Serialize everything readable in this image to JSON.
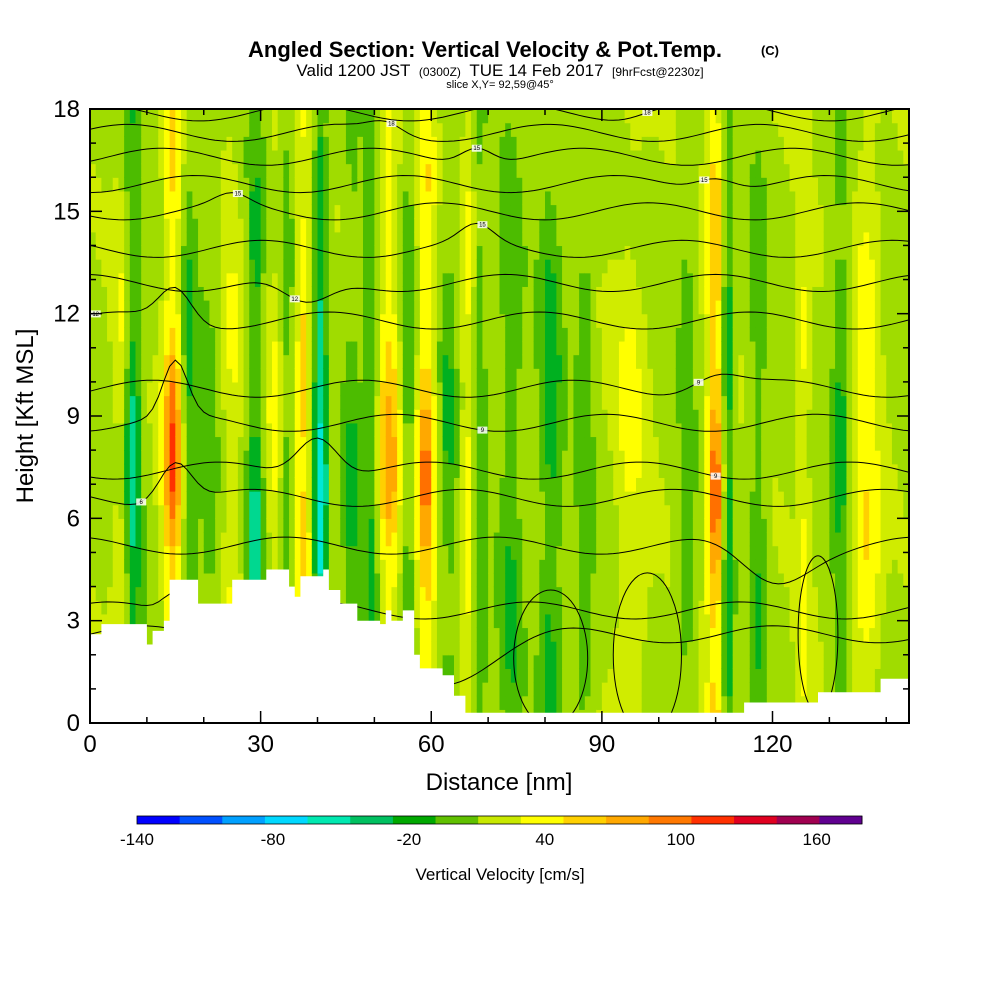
{
  "chart_data": {
    "type": "heatmap",
    "title": "Angled Section: Vertical Velocity & Pot.Temp.",
    "title_unit": "(C)",
    "subtitle_prefix": "Valid 1200 JST",
    "subtitle_utc": "(0300Z)",
    "subtitle_date": "TUE 14 Feb 2017",
    "subtitle_fcst": "[9hrFcst@2230z]",
    "slice_text": "slice X,Y= 92,59@45°",
    "xlabel": "Distance [nm]",
    "ylabel": "Height [Kft MSL]",
    "xlim": [
      0,
      144
    ],
    "ylim": [
      0,
      18
    ],
    "x_ticks": [
      "0",
      "30",
      "60",
      "90",
      "120"
    ],
    "x_tick_values": [
      0,
      30,
      60,
      90,
      120
    ],
    "y_ticks": [
      "0",
      "3",
      "6",
      "9",
      "12",
      "15",
      "18"
    ],
    "y_tick_values": [
      0,
      3,
      6,
      9,
      12,
      15,
      18
    ],
    "colorbar": {
      "label": "Vertical Velocity [cm/s]",
      "tick_labels": [
        "-140",
        "-80",
        "-20",
        "40",
        "100",
        "160"
      ],
      "tick_values": [
        -140,
        -80,
        -20,
        40,
        100,
        160
      ],
      "min": -140,
      "max": 180,
      "step": 20,
      "colors": [
        "#0000ff",
        "#0050ff",
        "#00a0ff",
        "#00d8ff",
        "#00e8b0",
        "#00c060",
        "#00a800",
        "#60c000",
        "#c8e800",
        "#ffff00",
        "#ffd000",
        "#ffa800",
        "#ff7800",
        "#ff3000",
        "#e00020",
        "#a00050",
        "#600090"
      ]
    },
    "color_stops": [
      {
        "value": -70,
        "color": "#00e8d8"
      },
      {
        "value": -50,
        "color": "#00d890"
      },
      {
        "value": -30,
        "color": "#00b020"
      },
      {
        "value": -15,
        "color": "#4cbc00"
      },
      {
        "value": 0,
        "color": "#a0dc00"
      },
      {
        "value": 15,
        "color": "#d0ec00"
      },
      {
        "value": 30,
        "color": "#ffff00"
      },
      {
        "value": 50,
        "color": "#ffd000"
      },
      {
        "value": 70,
        "color": "#ffa800"
      },
      {
        "value": 90,
        "color": "#ff7000"
      },
      {
        "value": 110,
        "color": "#ff3000"
      }
    ],
    "updraft_cores": [
      {
        "x": 5.5,
        "amp": 30,
        "width": 1.5
      },
      {
        "x": 14.5,
        "amp": 110,
        "width": 1.6
      },
      {
        "x": 25.0,
        "amp": 30,
        "width": 2.0
      },
      {
        "x": 32.5,
        "amp": 30,
        "width": 1.5
      },
      {
        "x": 37.5,
        "amp": 70,
        "width": 1.2
      },
      {
        "x": 52.5,
        "amp": 80,
        "width": 2.0
      },
      {
        "x": 59.0,
        "amp": 95,
        "width": 1.6
      },
      {
        "x": 66.5,
        "amp": 40,
        "width": 1.3
      },
      {
        "x": 95.0,
        "amp": 30,
        "width": 3.0
      },
      {
        "x": 110.0,
        "amp": 110,
        "width": 1.5
      },
      {
        "x": 125.5,
        "amp": 35,
        "width": 1.2
      },
      {
        "x": 136.5,
        "amp": 50,
        "width": 2.5
      }
    ],
    "downdraft_cores": [
      {
        "x": 7.5,
        "amp": -60,
        "width": 1.5
      },
      {
        "x": 17.5,
        "amp": -40,
        "width": 1.5
      },
      {
        "x": 21.0,
        "amp": -25,
        "width": 1.5
      },
      {
        "x": 29.0,
        "amp": -55,
        "width": 1.5
      },
      {
        "x": 34.5,
        "amp": -30,
        "width": 1.2
      },
      {
        "x": 40.5,
        "amp": -85,
        "width": 1.2
      },
      {
        "x": 46.0,
        "amp": -30,
        "width": 1.5
      },
      {
        "x": 49.5,
        "amp": -45,
        "width": 1.5
      },
      {
        "x": 56.0,
        "amp": -35,
        "width": 1.5
      },
      {
        "x": 63.0,
        "amp": -30,
        "width": 1.5
      },
      {
        "x": 68.5,
        "amp": -35,
        "width": 1.3
      },
      {
        "x": 74.0,
        "amp": -35,
        "width": 2.0
      },
      {
        "x": 81.0,
        "amp": -45,
        "width": 2.0
      },
      {
        "x": 87.0,
        "amp": -30,
        "width": 1.5
      },
      {
        "x": 105.0,
        "amp": -25,
        "width": 1.5
      },
      {
        "x": 112.0,
        "amp": -65,
        "width": 1.0
      },
      {
        "x": 117.5,
        "amp": -30,
        "width": 1.5
      },
      {
        "x": 132.0,
        "amp": -40,
        "width": 1.5
      }
    ],
    "terrain_profile": [
      [
        0,
        2.6
      ],
      [
        2,
        2.9
      ],
      [
        8,
        2.9
      ],
      [
        10,
        2.3
      ],
      [
        11,
        2.7
      ],
      [
        13,
        3.0
      ],
      [
        14,
        4.2
      ],
      [
        18,
        4.2
      ],
      [
        19,
        3.5
      ],
      [
        24,
        3.5
      ],
      [
        25,
        4.2
      ],
      [
        30,
        4.2
      ],
      [
        31,
        4.5
      ],
      [
        34,
        4.5
      ],
      [
        35,
        4.0
      ],
      [
        36,
        3.7
      ],
      [
        37,
        4.3
      ],
      [
        41,
        4.5
      ],
      [
        42,
        3.9
      ],
      [
        44,
        3.5
      ],
      [
        47,
        3.0
      ],
      [
        51,
        2.9
      ],
      [
        52,
        3.3
      ],
      [
        53,
        3.0
      ],
      [
        55,
        3.3
      ],
      [
        57,
        2.0
      ],
      [
        58,
        1.6
      ],
      [
        60,
        1.6
      ],
      [
        62,
        1.4
      ],
      [
        64,
        0.8
      ],
      [
        66,
        0.3
      ],
      [
        72,
        0.3
      ],
      [
        106,
        0.3
      ],
      [
        114,
        0.3
      ],
      [
        115,
        0.6
      ],
      [
        127,
        0.6
      ],
      [
        128,
        0.9
      ],
      [
        138,
        0.9
      ],
      [
        139,
        1.3
      ],
      [
        144,
        1.3
      ]
    ],
    "pot_temp_contours": [
      {
        "base": 2.6,
        "bump_x": 60,
        "bump_amp": -1.3,
        "bump_w": 14,
        "label": "",
        "label_x": 0
      },
      {
        "base": 3.3,
        "bump_x": 15,
        "bump_amp": 0.6,
        "bump_w": 3,
        "label": "",
        "label_x": 0
      },
      {
        "base": 5.2,
        "bump_x": 120,
        "bump_amp": -1.0,
        "bump_w": 8,
        "label": "",
        "label_x": 0
      },
      {
        "base": 6.6,
        "bump_x": 15,
        "bump_amp": 1.2,
        "bump_w": 4,
        "label": "6",
        "label_x": 9
      },
      {
        "base": 7.4,
        "bump_x": 40,
        "bump_amp": 1.2,
        "bump_w": 5,
        "label": "9",
        "label_x": 110
      },
      {
        "base": 8.8,
        "bump_x": 15,
        "bump_amp": 1.6,
        "bump_w": 3,
        "label": "9",
        "label_x": 69
      },
      {
        "base": 9.8,
        "bump_x": 110,
        "bump_amp": 0.5,
        "bump_w": 6,
        "label": "9",
        "label_x": 107
      },
      {
        "base": 11.8,
        "bump_x": 15,
        "bump_amp": 1.0,
        "bump_w": 4,
        "label": "12",
        "label_x": 1
      },
      {
        "base": 12.9,
        "bump_x": 38,
        "bump_amp": -0.8,
        "bump_w": 6,
        "label": "12",
        "label_x": 36
      },
      {
        "base": 13.9,
        "bump_x": 68,
        "bump_amp": 0.5,
        "bump_w": 4,
        "label": "15",
        "label_x": 69
      },
      {
        "base": 15.0,
        "bump_x": 25,
        "bump_amp": 0.3,
        "bump_w": 4,
        "label": "15",
        "label_x": 26
      },
      {
        "base": 15.8,
        "bump_x": 110,
        "bump_amp": 0.4,
        "bump_w": 5,
        "label": "15",
        "label_x": 108
      },
      {
        "base": 16.6,
        "bump_x": 68,
        "bump_amp": 0.5,
        "bump_w": 4,
        "label": "15",
        "label_x": 68
      },
      {
        "base": 17.3,
        "bump_x": 52,
        "bump_amp": 0.3,
        "bump_w": 4,
        "label": "18",
        "label_x": 53
      },
      {
        "base": 17.9,
        "bump_x": 100,
        "bump_amp": 0.2,
        "bump_w": 5,
        "label": "18",
        "label_x": 98
      }
    ],
    "closed_contours": [
      {
        "cx": 81,
        "cy": 1.9,
        "rx": 6.5,
        "ry": 2.0
      },
      {
        "cx": 98,
        "cy": 2.0,
        "rx": 6.0,
        "ry": 2.4
      },
      {
        "cx": 128,
        "cy": 2.6,
        "rx": 3.5,
        "ry": 2.3
      }
    ]
  }
}
